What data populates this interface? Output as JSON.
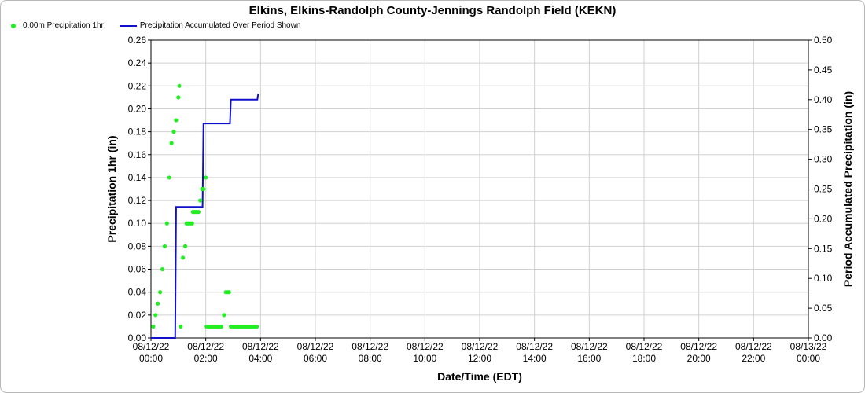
{
  "title": "Elkins, Elkins-Randolph County-Jennings Randolph Field (KEKN)",
  "legend": {
    "points_label": "0.00m Precipitation 1hr",
    "line_label": "Precipitation Accumulated Over Period Shown"
  },
  "colors": {
    "points": "#22ee22",
    "line": "#1010cc",
    "grid": "#d0d0d0"
  },
  "chart_data": {
    "type": "scatter",
    "title": "Elkins, Elkins-Randolph County-Jennings Randolph Field (KEKN)",
    "xlabel": "Date/Time (EDT)",
    "ylabel": "Precipitation 1hr (in)",
    "y2label": "Period Accumulated Precipitation (in)",
    "xlim": [
      "08/12/22 00:00",
      "08/13/22 00:00"
    ],
    "ylim": [
      0,
      0.26
    ],
    "y2lim": [
      0,
      0.5
    ],
    "grid": true,
    "legend_position": "top-left",
    "x_ticks": [
      [
        "08/12/22",
        "00:00"
      ],
      [
        "08/12/22",
        "02:00"
      ],
      [
        "08/12/22",
        "04:00"
      ],
      [
        "08/12/22",
        "06:00"
      ],
      [
        "08/12/22",
        "08:00"
      ],
      [
        "08/12/22",
        "10:00"
      ],
      [
        "08/12/22",
        "12:00"
      ],
      [
        "08/12/22",
        "14:00"
      ],
      [
        "08/12/22",
        "16:00"
      ],
      [
        "08/12/22",
        "18:00"
      ],
      [
        "08/12/22",
        "20:00"
      ],
      [
        "08/12/22",
        "22:00"
      ],
      [
        "08/13/22",
        "00:00"
      ]
    ],
    "y_ticks": [
      "0.00",
      "0.02",
      "0.04",
      "0.06",
      "0.08",
      "0.10",
      "0.12",
      "0.14",
      "0.16",
      "0.18",
      "0.20",
      "0.22",
      "0.24",
      "0.26"
    ],
    "y2_ticks": [
      "0.00",
      "0.05",
      "0.10",
      "0.15",
      "0.20",
      "0.25",
      "0.30",
      "0.35",
      "0.40",
      "0.45",
      "0.50"
    ],
    "series": [
      {
        "name": "0.00m Precipitation 1hr",
        "type": "scatter",
        "points": [
          [
            "08/12/22 00:05",
            0.01
          ],
          [
            "08/12/22 00:10",
            0.02
          ],
          [
            "08/12/22 00:15",
            0.03
          ],
          [
            "08/12/22 00:20",
            0.04
          ],
          [
            "08/12/22 00:25",
            0.06
          ],
          [
            "08/12/22 00:30",
            0.08
          ],
          [
            "08/12/22 00:35",
            0.1
          ],
          [
            "08/12/22 00:40",
            0.14
          ],
          [
            "08/12/22 00:45",
            0.17
          ],
          [
            "08/12/22 00:50",
            0.18
          ],
          [
            "08/12/22 00:55",
            0.19
          ],
          [
            "08/12/22 01:00",
            0.21
          ],
          [
            "08/12/22 01:02",
            0.22
          ],
          [
            "08/12/22 01:05",
            0.01
          ],
          [
            "08/12/22 01:10",
            0.07
          ],
          [
            "08/12/22 01:15",
            0.08
          ],
          [
            "08/12/22 01:18",
            0.1
          ],
          [
            "08/12/22 01:22",
            0.1
          ],
          [
            "08/12/22 01:26",
            0.1
          ],
          [
            "08/12/22 01:30",
            0.1
          ],
          [
            "08/12/22 01:32",
            0.11
          ],
          [
            "08/12/22 01:36",
            0.11
          ],
          [
            "08/12/22 01:40",
            0.11
          ],
          [
            "08/12/22 01:44",
            0.11
          ],
          [
            "08/12/22 01:48",
            0.12
          ],
          [
            "08/12/22 01:52",
            0.13
          ],
          [
            "08/12/22 01:55",
            0.13
          ],
          [
            "08/12/22 02:00",
            0.14
          ],
          [
            "08/12/22 02:02",
            0.01
          ],
          [
            "08/12/22 02:06",
            0.01
          ],
          [
            "08/12/22 02:10",
            0.01
          ],
          [
            "08/12/22 02:14",
            0.01
          ],
          [
            "08/12/22 02:18",
            0.01
          ],
          [
            "08/12/22 02:22",
            0.01
          ],
          [
            "08/12/22 02:26",
            0.01
          ],
          [
            "08/12/22 02:30",
            0.01
          ],
          [
            "08/12/22 02:34",
            0.01
          ],
          [
            "08/12/22 02:40",
            0.02
          ],
          [
            "08/12/22 02:44",
            0.04
          ],
          [
            "08/12/22 02:48",
            0.04
          ],
          [
            "08/12/22 02:51",
            0.04
          ],
          [
            "08/12/22 02:55",
            0.01
          ],
          [
            "08/12/22 03:00",
            0.01
          ],
          [
            "08/12/22 03:04",
            0.01
          ],
          [
            "08/12/22 03:08",
            0.01
          ],
          [
            "08/12/22 03:12",
            0.01
          ],
          [
            "08/12/22 03:16",
            0.01
          ],
          [
            "08/12/22 03:20",
            0.01
          ],
          [
            "08/12/22 03:24",
            0.01
          ],
          [
            "08/12/22 03:28",
            0.01
          ],
          [
            "08/12/22 03:32",
            0.01
          ],
          [
            "08/12/22 03:36",
            0.01
          ],
          [
            "08/12/22 03:40",
            0.01
          ],
          [
            "08/12/22 03:44",
            0.01
          ],
          [
            "08/12/22 03:48",
            0.01
          ],
          [
            "08/12/22 03:52",
            0.01
          ]
        ]
      },
      {
        "name": "Precipitation Accumulated Over Period Shown",
        "type": "line",
        "axis": "right",
        "points": [
          [
            "08/12/22 00:00",
            0.0
          ],
          [
            "08/12/22 00:53",
            0.0
          ],
          [
            "08/12/22 00:55",
            0.22
          ],
          [
            "08/12/22 01:53",
            0.22
          ],
          [
            "08/12/22 01:55",
            0.36
          ],
          [
            "08/12/22 02:53",
            0.36
          ],
          [
            "08/12/22 02:55",
            0.4
          ],
          [
            "08/12/22 03:53",
            0.4
          ],
          [
            "08/12/22 03:55",
            0.41
          ]
        ]
      }
    ]
  }
}
